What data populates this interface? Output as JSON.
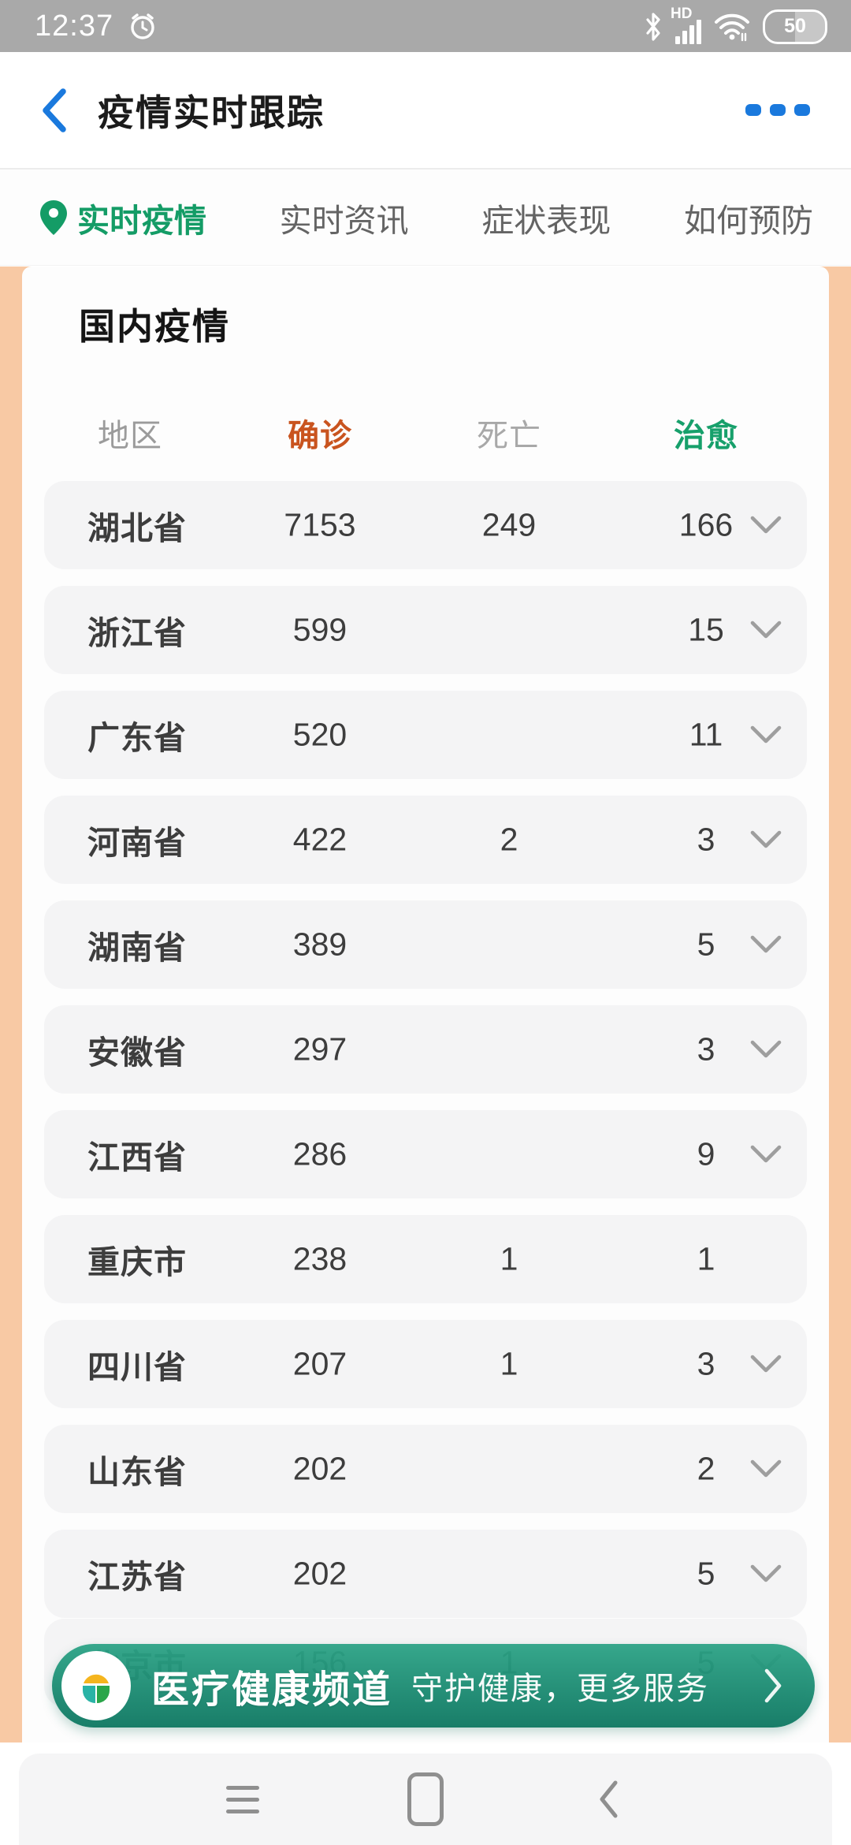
{
  "status_bar": {
    "time": "12:37",
    "hd_label": "HD",
    "battery_level": "50",
    "icons": [
      "alarm-icon",
      "bluetooth-icon",
      "signal-icon",
      "wifi-icon",
      "battery-icon"
    ],
    "bg_color": "#a9a9a9"
  },
  "header": {
    "title": "疫情实时跟踪",
    "icons": [
      "back-icon",
      "more-icon"
    ],
    "accent_color": "#1a79dd"
  },
  "tabs": [
    {
      "label": "实时疫情",
      "active": true,
      "icon": "location-pin-icon"
    },
    {
      "label": "实时资讯",
      "active": false
    },
    {
      "label": "症状表现",
      "active": false
    },
    {
      "label": "如何预防",
      "active": false
    }
  ],
  "content": {
    "section_title": "国内疫情",
    "table": {
      "headers": [
        {
          "key": "region",
          "label": "地区",
          "color": "#9b9b9b"
        },
        {
          "key": "confirmed",
          "label": "确诊",
          "color": "#c9541f"
        },
        {
          "key": "deaths",
          "label": "死亡",
          "color": "#a8a8a8"
        },
        {
          "key": "cured",
          "label": "治愈",
          "color": "#17a06b"
        }
      ],
      "rows": [
        {
          "region": "湖北省",
          "confirmed": "7153",
          "deaths": "249",
          "cured": "166",
          "expandable": true
        },
        {
          "region": "浙江省",
          "confirmed": "599",
          "deaths": "",
          "cured": "15",
          "expandable": true
        },
        {
          "region": "广东省",
          "confirmed": "520",
          "deaths": "",
          "cured": "11",
          "expandable": true
        },
        {
          "region": "河南省",
          "confirmed": "422",
          "deaths": "2",
          "cured": "3",
          "expandable": true
        },
        {
          "region": "湖南省",
          "confirmed": "389",
          "deaths": "",
          "cured": "5",
          "expandable": true
        },
        {
          "region": "安徽省",
          "confirmed": "297",
          "deaths": "",
          "cured": "3",
          "expandable": true
        },
        {
          "region": "江西省",
          "confirmed": "286",
          "deaths": "",
          "cured": "9",
          "expandable": true
        },
        {
          "region": "重庆市",
          "confirmed": "238",
          "deaths": "1",
          "cured": "1",
          "expandable": false
        },
        {
          "region": "四川省",
          "confirmed": "207",
          "deaths": "1",
          "cured": "3",
          "expandable": true
        },
        {
          "region": "山东省",
          "confirmed": "202",
          "deaths": "",
          "cured": "2",
          "expandable": true
        },
        {
          "region": "江苏省",
          "confirmed": "202",
          "deaths": "",
          "cured": "5",
          "expandable": true
        },
        {
          "region": "北京市",
          "confirmed": "156",
          "deaths": "1",
          "cured": "5",
          "expandable": true,
          "partially_hidden": true
        }
      ]
    }
  },
  "banner": {
    "title": "医疗健康频道",
    "subtitle": "守护健康，更多服务",
    "icons": [
      "health-logo-icon",
      "chevron-right-icon"
    ],
    "gradient": {
      "start": "#2ca386",
      "end": "#0f7862"
    }
  },
  "nav_bar": {
    "icons": [
      "recents-icon",
      "home-icon",
      "back-icon"
    ]
  },
  "colors": {
    "content_margin": "#f8c9a4",
    "card_bg": "#fdfdfd",
    "row_bg": "#f4f4f5",
    "tab_active": "#149c66"
  }
}
